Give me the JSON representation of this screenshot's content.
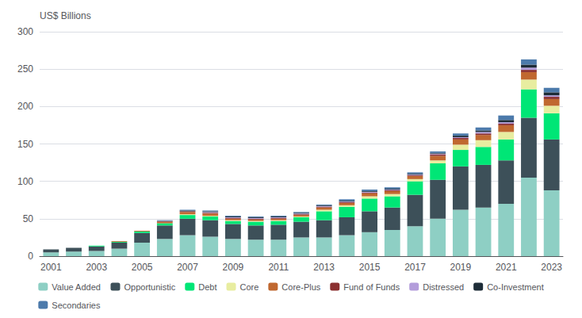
{
  "chart_data": {
    "type": "bar",
    "stacked": true,
    "ylabel": "US$ Billions",
    "categories": [
      "2001",
      null,
      "2003",
      null,
      "2005",
      null,
      "2007",
      null,
      "2009",
      null,
      "2011",
      null,
      "2013",
      null,
      "2015",
      null,
      "2017",
      null,
      "2019",
      null,
      "2021",
      null,
      "2023"
    ],
    "series": [
      {
        "name": "Value Added",
        "color": "#8ECFC4",
        "values": [
          5,
          6,
          7,
          10,
          18,
          23,
          28,
          26,
          23,
          22,
          22,
          25,
          25,
          28,
          32,
          35,
          40,
          50,
          62,
          65,
          70,
          105,
          88
        ]
      },
      {
        "name": "Opportunistic",
        "color": "#3D5059",
        "values": [
          4,
          5,
          6,
          8,
          13,
          18,
          22,
          22,
          20,
          19,
          20,
          21,
          23,
          24,
          28,
          30,
          42,
          52,
          58,
          57,
          58,
          80,
          68
        ]
      },
      {
        "name": "Debt",
        "color": "#00E676",
        "values": [
          0,
          0,
          1,
          1,
          2,
          3,
          5,
          5,
          4,
          5,
          5,
          6,
          12,
          14,
          17,
          15,
          18,
          22,
          22,
          24,
          28,
          38,
          35
        ]
      },
      {
        "name": "Core",
        "color": "#E8EDA0",
        "values": [
          0,
          0,
          0,
          0,
          0,
          0,
          1,
          1,
          1,
          1,
          1,
          1,
          2,
          2,
          3,
          3,
          3,
          4,
          7,
          9,
          10,
          13,
          10
        ]
      },
      {
        "name": "Core-Plus",
        "color": "#C06830",
        "values": [
          0,
          0,
          0,
          1,
          1,
          2,
          3,
          3,
          2,
          2,
          2,
          2,
          3,
          3,
          4,
          4,
          4,
          6,
          7,
          7,
          9,
          10,
          9
        ]
      },
      {
        "name": "Fund of Funds",
        "color": "#8B3030",
        "values": [
          0,
          0,
          0,
          0,
          0,
          1,
          1,
          1,
          1,
          1,
          1,
          1,
          1,
          1,
          1,
          1,
          1,
          2,
          2,
          2,
          2,
          3,
          3
        ]
      },
      {
        "name": "Distressed",
        "color": "#B39DDB",
        "values": [
          0,
          0,
          0,
          0,
          0,
          0,
          0,
          1,
          1,
          1,
          1,
          1,
          1,
          1,
          1,
          1,
          1,
          1,
          1,
          2,
          2,
          3,
          2
        ]
      },
      {
        "name": "Co-Investment",
        "color": "#1E2D38",
        "values": [
          0,
          0,
          0,
          0,
          0,
          0,
          1,
          1,
          1,
          1,
          1,
          1,
          1,
          1,
          1,
          1,
          1,
          1,
          2,
          2,
          3,
          4,
          4
        ]
      },
      {
        "name": "Secondaries",
        "color": "#4C7AAB",
        "values": [
          0,
          0,
          0,
          0,
          0,
          1,
          1,
          1,
          1,
          1,
          1,
          1,
          1,
          2,
          2,
          2,
          2,
          2,
          3,
          4,
          6,
          7,
          6
        ]
      }
    ],
    "ylim": [
      0,
      300
    ],
    "yticks": [
      0,
      50,
      100,
      150,
      200,
      250,
      300
    ],
    "grid": true,
    "legend": "bottom"
  }
}
